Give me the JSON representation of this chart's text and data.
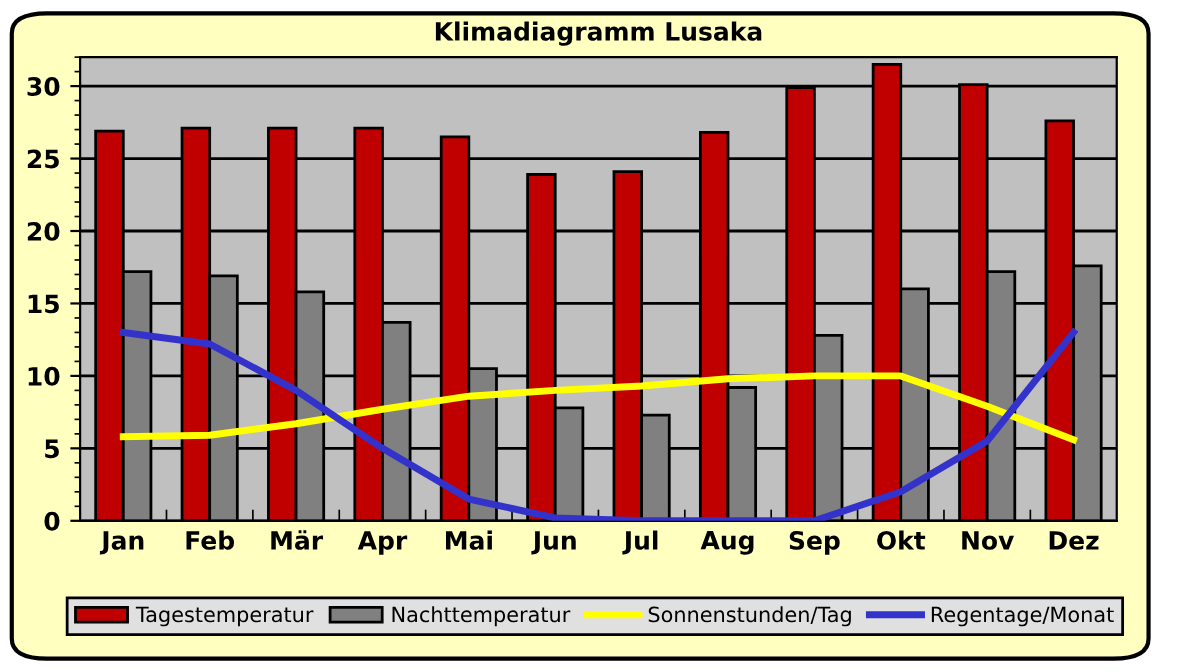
{
  "chart_data": {
    "type": "bar",
    "title": "Klimadiagramm Lusaka",
    "categories": [
      "Jan",
      "Feb",
      "Mär",
      "Apr",
      "Mai",
      "Jun",
      "Jul",
      "Aug",
      "Sep",
      "Okt",
      "Nov",
      "Dez"
    ],
    "series": [
      {
        "name": "Tagestemperatur",
        "color": "#c00000",
        "values": [
          26.9,
          27.1,
          27.1,
          27.1,
          26.5,
          23.9,
          24.1,
          26.8,
          29.9,
          31.5,
          30.1,
          27.6
        ]
      },
      {
        "name": "Nachttemperatur",
        "color": "#808080",
        "values": [
          17.2,
          16.9,
          15.8,
          13.7,
          10.5,
          7.8,
          7.3,
          9.2,
          12.8,
          16.0,
          17.2,
          17.6
        ]
      },
      {
        "name": "Sonnenstunden/Tag",
        "type": "line",
        "color": "#ffff00",
        "values": [
          5.8,
          5.9,
          6.7,
          7.7,
          8.6,
          9.0,
          9.3,
          9.8,
          10.0,
          10.0,
          7.9,
          5.6
        ]
      },
      {
        "name": "Regentage/Monat",
        "type": "line",
        "color": "#3333cc",
        "values": [
          13.0,
          12.2,
          9.0,
          5.0,
          1.5,
          0.2,
          0.0,
          0.0,
          0.0,
          2.0,
          5.5,
          13.0
        ]
      }
    ],
    "ylim": [
      0,
      32
    ],
    "yticks": [
      0,
      5,
      10,
      15,
      20,
      25,
      30
    ],
    "grid": "y",
    "legend": "bottom",
    "marker": "none",
    "line_style": "solid"
  }
}
